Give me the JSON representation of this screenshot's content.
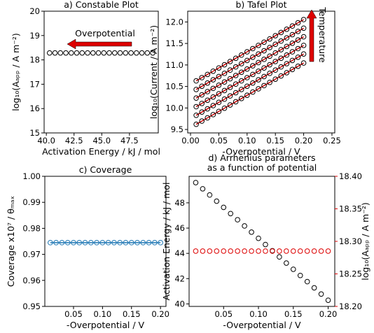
{
  "chart_data": [
    {
      "type": "scatter",
      "title": "a) Constable Plot",
      "xlabel": "Activation Energy / kJ / mol",
      "ylabel": "log₁₀(Aₐₚₚ / A m⁻²)",
      "x": [
        49.6,
        49.11,
        48.62,
        48.13,
        47.64,
        47.15,
        46.66,
        46.17,
        45.68,
        45.19,
        44.7,
        44.21,
        43.72,
        43.23,
        42.74,
        42.25,
        41.76,
        41.27,
        40.78,
        40.29
      ],
      "values": [
        18.285,
        18.285,
        18.285,
        18.285,
        18.285,
        18.285,
        18.285,
        18.285,
        18.285,
        18.285,
        18.285,
        18.285,
        18.285,
        18.285,
        18.285,
        18.285,
        18.285,
        18.285,
        18.285,
        18.285
      ],
      "color": "#000000",
      "annotation": {
        "text": "Overpotential",
        "color": "#dd0000"
      },
      "xlim": [
        39.8,
        50.1
      ],
      "xticks": [
        {
          "value": 40,
          "label": "40.0"
        },
        {
          "value": 42.5,
          "label": "42.5"
        },
        {
          "value": 45,
          "label": "45.0"
        },
        {
          "value": 47.5,
          "label": "47.5"
        }
      ],
      "ylim": [
        15,
        20
      ],
      "yticks": [
        15,
        16,
        17,
        18,
        19,
        20
      ]
    },
    {
      "type": "line",
      "title": "b) Tafel Plot",
      "xlabel": "-Overpotential / V",
      "ylabel": "log₁₀(Current / A  m⁻²)",
      "x": [
        0.01,
        0.02,
        0.03,
        0.04,
        0.05,
        0.06,
        0.07,
        0.08,
        0.09,
        0.1,
        0.11,
        0.12,
        0.13,
        0.14,
        0.15,
        0.16,
        0.17,
        0.18,
        0.19,
        0.2
      ],
      "marker_color": "#000000",
      "line_color": "#cc0000",
      "annotation": {
        "text": "Temperature",
        "color": "#dd0000"
      },
      "series": [
        {
          "values": [
            9.62,
            9.695,
            9.77,
            9.845,
            9.92,
            9.995,
            10.07,
            10.145,
            10.22,
            10.295,
            10.37,
            10.445,
            10.52,
            10.595,
            10.67,
            10.745,
            10.82,
            10.895,
            10.97,
            11.045
          ]
        },
        {
          "values": [
            9.83,
            9.905,
            9.98,
            10.055,
            10.13,
            10.205,
            10.28,
            10.355,
            10.43,
            10.505,
            10.58,
            10.655,
            10.73,
            10.805,
            10.88,
            10.955,
            11.03,
            11.105,
            11.18,
            11.255
          ]
        },
        {
          "values": [
            10.03,
            10.105,
            10.18,
            10.255,
            10.33,
            10.405,
            10.48,
            10.555,
            10.63,
            10.705,
            10.78,
            10.855,
            10.93,
            11.005,
            11.08,
            11.155,
            11.23,
            11.305,
            11.38,
            11.455
          ]
        },
        {
          "values": [
            10.23,
            10.305,
            10.38,
            10.455,
            10.53,
            10.605,
            10.68,
            10.755,
            10.83,
            10.905,
            10.98,
            11.055,
            11.13,
            11.205,
            11.28,
            11.355,
            11.43,
            11.505,
            11.58,
            11.655
          ]
        },
        {
          "values": [
            10.43,
            10.505,
            10.58,
            10.655,
            10.73,
            10.805,
            10.88,
            10.955,
            11.03,
            11.105,
            11.18,
            11.255,
            11.33,
            11.405,
            11.48,
            11.555,
            11.63,
            11.705,
            11.78,
            11.855
          ]
        },
        {
          "values": [
            10.63,
            10.705,
            10.78,
            10.855,
            10.93,
            11.005,
            11.08,
            11.155,
            11.23,
            11.305,
            11.38,
            11.455,
            11.53,
            11.605,
            11.68,
            11.755,
            11.83,
            11.905,
            11.98,
            12.055
          ]
        }
      ],
      "xlim": [
        -0.005,
        0.255
      ],
      "xticks": [
        {
          "value": 0,
          "label": "0.00"
        },
        0.05,
        {
          "value": 0.1,
          "label": "0.10"
        },
        0.15,
        {
          "value": 0.2,
          "label": "0.20"
        },
        0.25
      ],
      "ylim": [
        9.42,
        12.25
      ],
      "yticks": [
        9.5,
        {
          "value": 10,
          "label": "10.0"
        },
        10.5,
        {
          "value": 11,
          "label": "11.0"
        },
        11.5,
        {
          "value": 12,
          "label": "12.0"
        }
      ]
    },
    {
      "type": "line",
      "title": "c) Coverage",
      "xlabel": "-Overpotential / V",
      "ylabel": "Coverage x10⁷ / θₘₐₓ",
      "x": [
        0.01,
        0.02,
        0.03,
        0.04,
        0.05,
        0.06,
        0.07,
        0.08,
        0.09,
        0.1,
        0.11,
        0.12,
        0.13,
        0.14,
        0.15,
        0.16,
        0.17,
        0.18,
        0.19,
        0.2
      ],
      "values": [
        0.9745,
        0.9745,
        0.9745,
        0.9745,
        0.9745,
        0.9745,
        0.9745,
        0.9745,
        0.9745,
        0.9745,
        0.9745,
        0.9745,
        0.9745,
        0.9745,
        0.9745,
        0.9745,
        0.9745,
        0.9745,
        0.9745,
        0.9745
      ],
      "color": "#1f77b4",
      "xlim": [
        0.0005,
        0.2095
      ],
      "xticks": [
        0.05,
        {
          "value": 0.1,
          "label": "0.10"
        },
        0.15,
        {
          "value": 0.2,
          "label": "0.20"
        }
      ],
      "ylim": [
        0.95,
        1.0
      ],
      "yticks": [
        0.95,
        0.96,
        0.97,
        0.98,
        0.99,
        {
          "value": 1.0,
          "label": "1.00"
        }
      ]
    },
    {
      "type": "scatter",
      "title": [
        "d) Arrhenius parameters",
        "as a function of potential"
      ],
      "xlabel": "-Overpotential / V",
      "ylabel": "Activation Energy / kJ / mol",
      "y2label": "log₁₀(Aₐₚₚ / A m⁻²)",
      "y2color": "#dd0000",
      "x": [
        0.01,
        0.02,
        0.03,
        0.04,
        0.05,
        0.06,
        0.07,
        0.08,
        0.09,
        0.1,
        0.11,
        0.12,
        0.13,
        0.14,
        0.15,
        0.16,
        0.17,
        0.18,
        0.19,
        0.2
      ],
      "series": [
        {
          "color": "#000000",
          "values": [
            49.6,
            49.11,
            48.62,
            48.13,
            47.64,
            47.15,
            46.66,
            46.17,
            45.68,
            45.19,
            44.7,
            44.21,
            43.72,
            43.23,
            42.74,
            42.25,
            41.76,
            41.27,
            40.78,
            40.29
          ]
        },
        {
          "color": "#dd0000",
          "axis": "y2",
          "values": [
            18.285,
            18.285,
            18.285,
            18.285,
            18.285,
            18.285,
            18.285,
            18.285,
            18.285,
            18.285,
            18.285,
            18.285,
            18.285,
            18.285,
            18.285,
            18.285,
            18.285,
            18.285,
            18.285,
            18.285
          ]
        }
      ],
      "xlim": [
        0.0005,
        0.2095
      ],
      "xticks": [
        0.05,
        {
          "value": 0.1,
          "label": "0.10"
        },
        0.15,
        {
          "value": 0.2,
          "label": "0.20"
        }
      ],
      "ylim": [
        39.8,
        50.1
      ],
      "yticks": [
        40,
        42,
        44,
        46,
        48
      ],
      "y2lim": [
        18.2,
        18.4
      ],
      "y2ticks": [
        {
          "value": 18.2,
          "label": "18.20"
        },
        18.25,
        {
          "value": 18.3,
          "label": "18.30"
        },
        18.35,
        {
          "value": 18.4,
          "label": "18.40"
        }
      ]
    }
  ]
}
